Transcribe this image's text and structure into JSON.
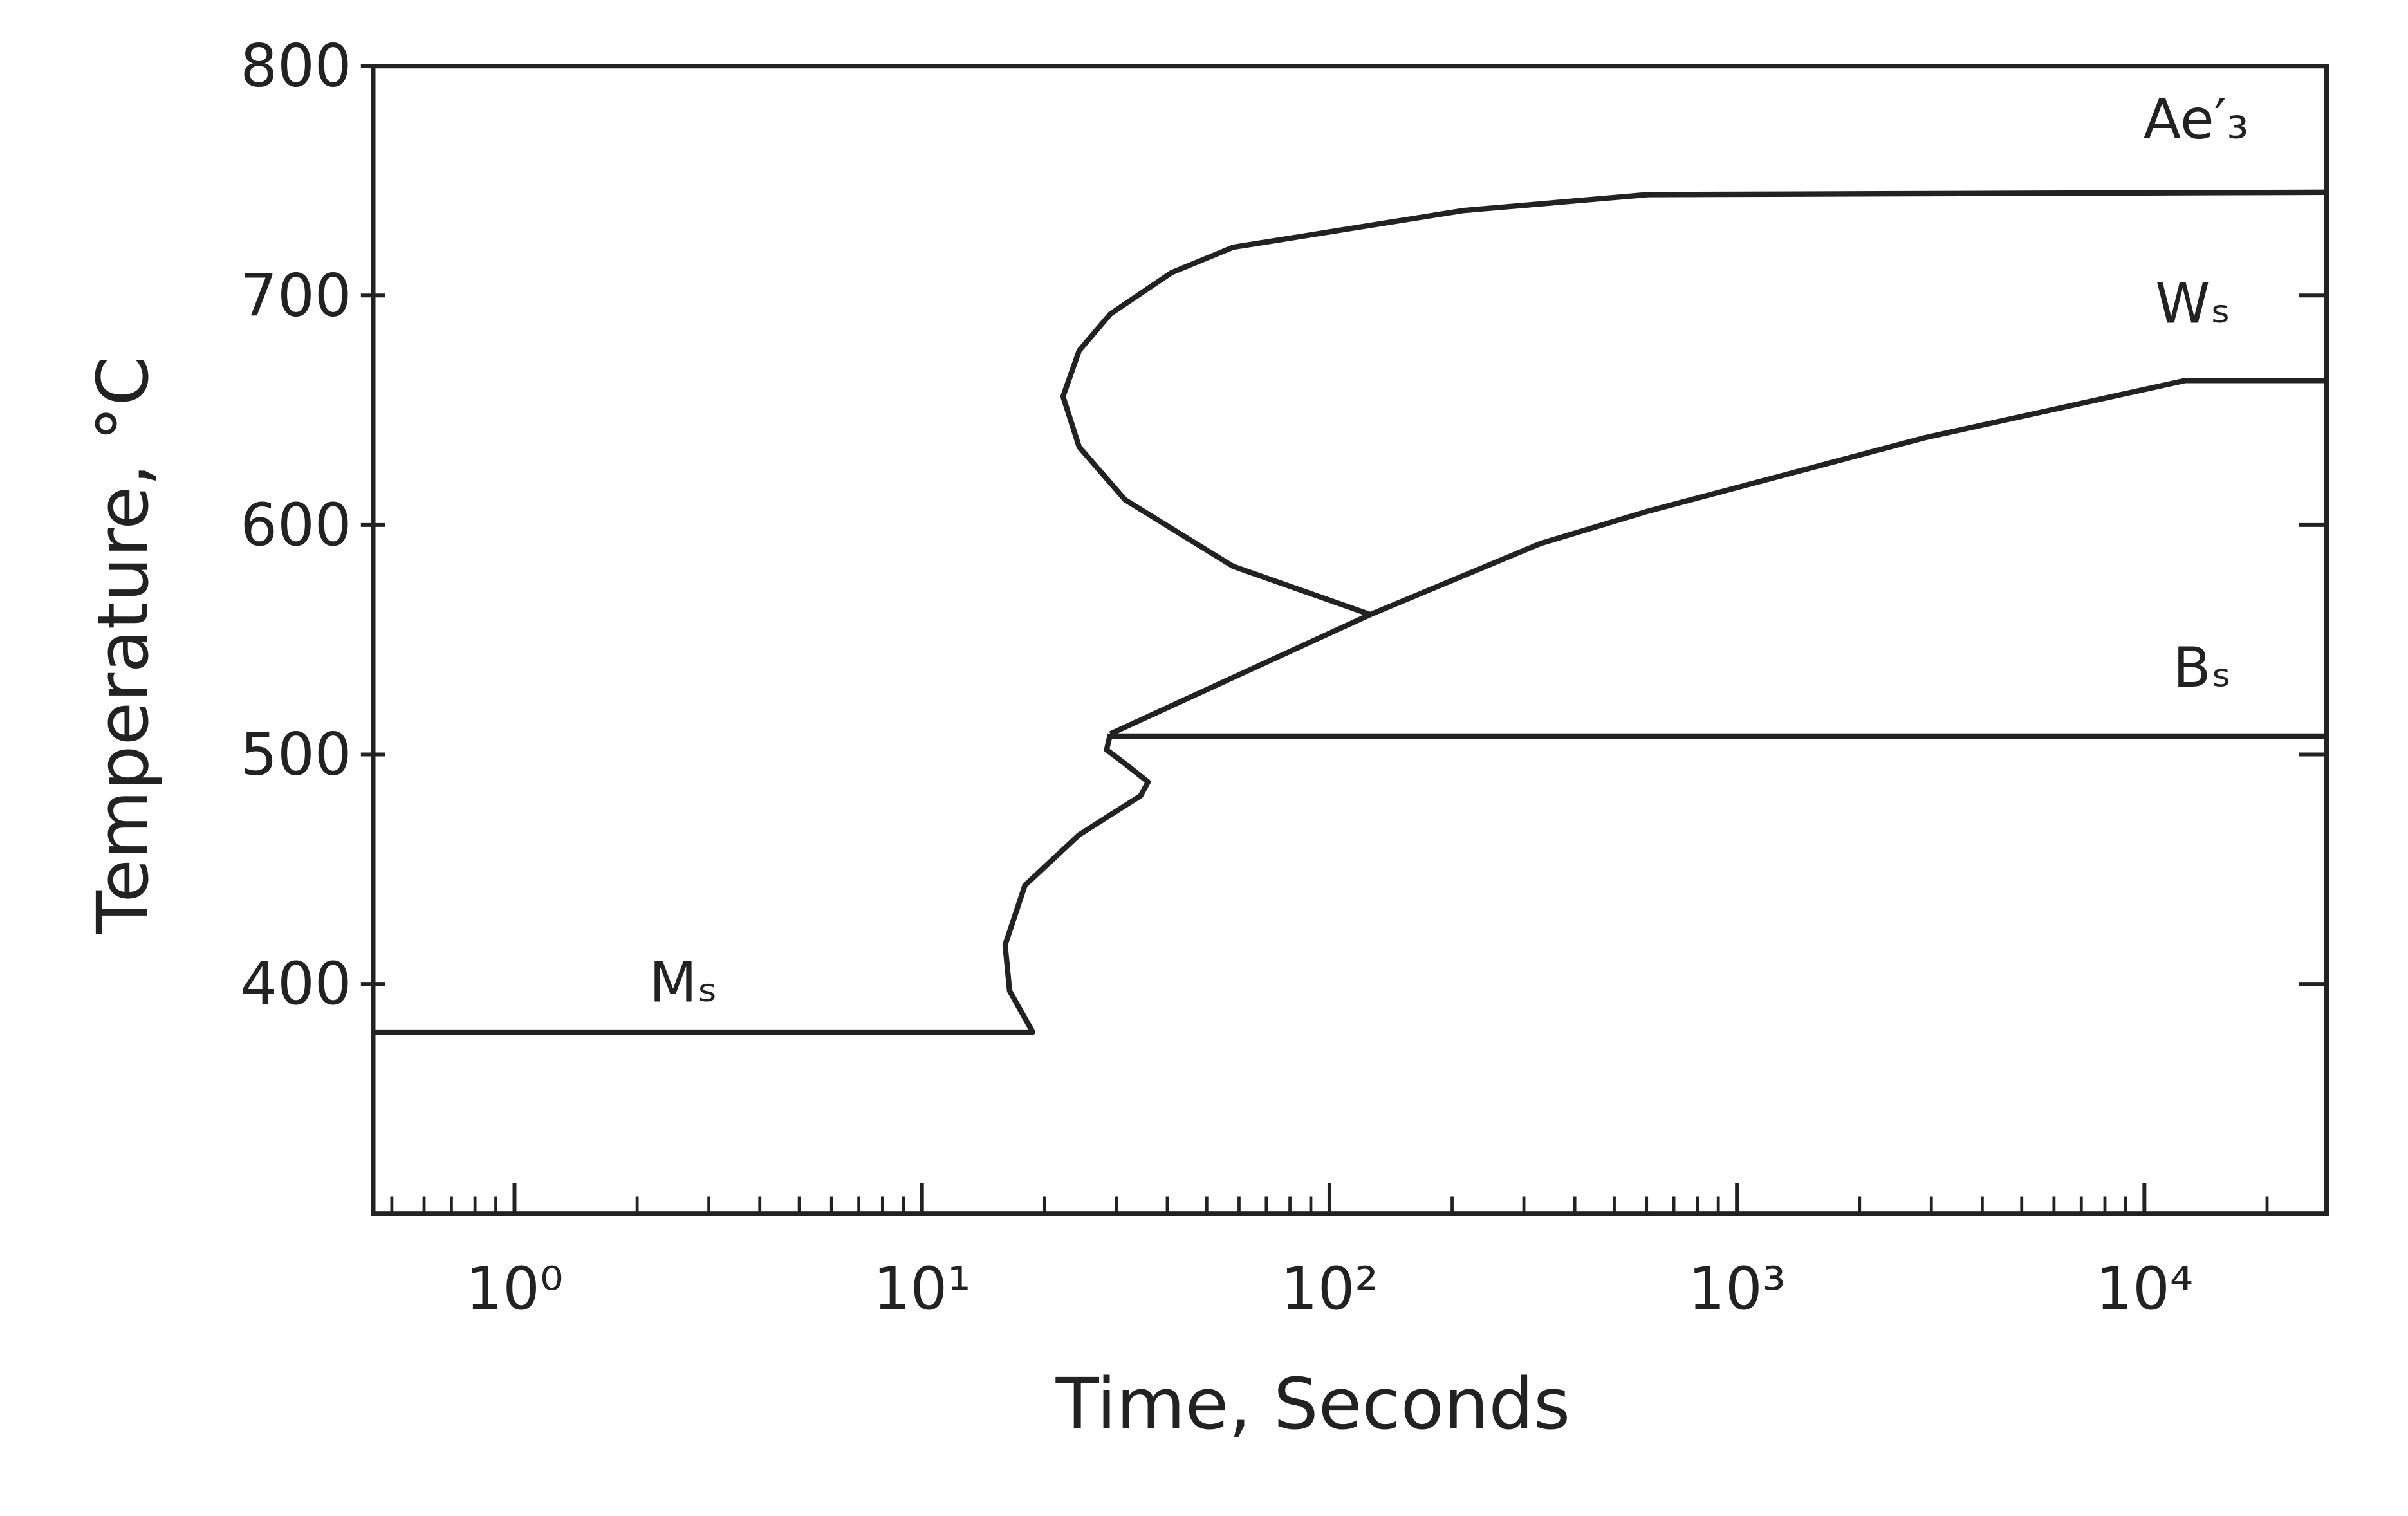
{
  "chart_data": {
    "type": "line",
    "xlabel": "Time, Seconds",
    "ylabel": "Temperature, °C",
    "xscale": "log",
    "xlim": [
      0.45,
      28000
    ],
    "ylim": [
      300,
      800
    ],
    "xticks": [
      {
        "value": 1,
        "label": "10⁰"
      },
      {
        "value": 10,
        "label": "10¹"
      },
      {
        "value": 100,
        "label": "10²"
      },
      {
        "value": 1000,
        "label": "10³"
      },
      {
        "value": 10000,
        "label": "10⁴"
      }
    ],
    "xminorticks": [
      0.5,
      0.6,
      0.7,
      0.8,
      0.9,
      2,
      3,
      4,
      5,
      6,
      7,
      8,
      9,
      20,
      30,
      40,
      50,
      60,
      70,
      80,
      90,
      200,
      300,
      400,
      500,
      600,
      700,
      800,
      900,
      2000,
      3000,
      4000,
      5000,
      6000,
      7000,
      8000,
      9000,
      20000
    ],
    "yticks": [
      400,
      500,
      600,
      700,
      800
    ],
    "color": "#222222",
    "series": [
      {
        "name": "Ae′₃",
        "x": [
          28000,
          605,
          213,
          58,
          41,
          29,
          24.3,
          22.2,
          24.3,
          31.5,
          58,
          126
        ],
        "values": [
          745,
          744,
          737,
          721,
          710,
          692,
          676,
          656,
          634,
          611,
          582,
          561
        ]
      },
      {
        "name": "Wₛ",
        "x": [
          29,
          126,
          330,
          605,
          2890,
          12600,
          28000
        ],
        "values": [
          509,
          561,
          592,
          606,
          638,
          663,
          663
        ]
      },
      {
        "name": "Bₛ",
        "x": [
          29,
          28000
        ],
        "values": [
          508,
          508
        ]
      },
      {
        "name": "Mₛ",
        "x": [
          0.45,
          18.7,
          16.4,
          16.0,
          17.9,
          24.3,
          34.4,
          35.9,
          31.5,
          28.4,
          29
        ],
        "values": [
          379,
          379,
          397,
          417,
          443,
          465,
          482,
          488,
          496,
          502,
          509
        ]
      }
    ]
  }
}
